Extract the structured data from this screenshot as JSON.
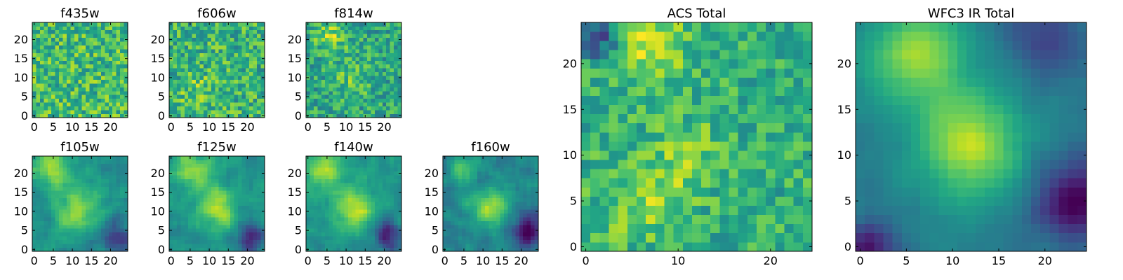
{
  "figure": {
    "type": "heatmap_grid",
    "colormap": "viridis",
    "grid_size": 25
  },
  "chart_data": [
    {
      "id": "f435w",
      "type": "heatmap",
      "title": "f435w",
      "xticks": [
        "0",
        "5",
        "10",
        "15",
        "20"
      ],
      "yticks": [
        "0",
        "5",
        "10",
        "15",
        "20"
      ],
      "xlim": [
        -0.5,
        24.5
      ],
      "ylim": [
        -0.5,
        24.5
      ],
      "texture": "noise",
      "level": 0.68,
      "noise": 0.22,
      "blobs": []
    },
    {
      "id": "f606w",
      "type": "heatmap",
      "title": "f606w",
      "xticks": [
        "0",
        "5",
        "10",
        "15",
        "20"
      ],
      "yticks": [
        "0",
        "5",
        "10",
        "15",
        "20"
      ],
      "xlim": [
        -0.5,
        24.5
      ],
      "ylim": [
        -0.5,
        24.5
      ],
      "texture": "noise",
      "level": 0.64,
      "noise": 0.22,
      "blobs": [
        [
          7,
          6,
          4,
          0.12
        ]
      ]
    },
    {
      "id": "f814w",
      "type": "heatmap",
      "title": "f814w",
      "xticks": [
        "0",
        "5",
        "10",
        "15",
        "20"
      ],
      "yticks": [
        "0",
        "5",
        "10",
        "15",
        "20"
      ],
      "xlim": [
        -0.5,
        24.5
      ],
      "ylim": [
        -0.5,
        24.5
      ],
      "texture": "noise",
      "level": 0.58,
      "noise": 0.2,
      "blobs": [
        [
          6,
          21,
          3,
          0.25
        ],
        [
          12,
          10,
          4,
          0.15
        ]
      ]
    },
    {
      "id": "f105w",
      "type": "heatmap",
      "title": "f105w",
      "xticks": [
        "0",
        "5",
        "10",
        "15",
        "20"
      ],
      "yticks": [
        "0",
        "5",
        "10",
        "15",
        "20"
      ],
      "xlim": [
        -0.5,
        24.5
      ],
      "ylim": [
        -0.5,
        24.5
      ],
      "texture": "smooth",
      "level": 0.5,
      "noise": 0.12,
      "blobs": [
        [
          5,
          21,
          3.5,
          0.35
        ],
        [
          11,
          10,
          4,
          0.35
        ],
        [
          22,
          3,
          3,
          -0.35
        ]
      ]
    },
    {
      "id": "f125w",
      "type": "heatmap",
      "title": "f125w",
      "xticks": [
        "0",
        "5",
        "10",
        "15",
        "20"
      ],
      "yticks": [
        "0",
        "5",
        "10",
        "15",
        "20"
      ],
      "xlim": [
        -0.5,
        24.5
      ],
      "ylim": [
        -0.5,
        24.5
      ],
      "texture": "smooth",
      "level": 0.5,
      "noise": 0.12,
      "blobs": [
        [
          6,
          21,
          3.5,
          0.35
        ],
        [
          12,
          11,
          4,
          0.38
        ],
        [
          21,
          3,
          3,
          -0.35
        ]
      ]
    },
    {
      "id": "f140w",
      "type": "heatmap",
      "title": "f140w",
      "xticks": [
        "0",
        "5",
        "10",
        "15",
        "20"
      ],
      "yticks": [
        "0",
        "5",
        "10",
        "15",
        "20"
      ],
      "xlim": [
        -0.5,
        24.5
      ],
      "ylim": [
        -0.5,
        24.5
      ],
      "texture": "smooth",
      "level": 0.5,
      "noise": 0.12,
      "blobs": [
        [
          4,
          21,
          3.5,
          0.4
        ],
        [
          12,
          11,
          4,
          0.4
        ],
        [
          21,
          4,
          3,
          -0.35
        ]
      ]
    },
    {
      "id": "f160w",
      "type": "heatmap",
      "title": "f160w",
      "xticks": [
        "0",
        "5",
        "10",
        "15",
        "20"
      ],
      "yticks": [
        "0",
        "5",
        "10",
        "15",
        "20"
      ],
      "xlim": [
        -0.5,
        24.5
      ],
      "ylim": [
        -0.5,
        24.5
      ],
      "texture": "smooth",
      "level": 0.45,
      "noise": 0.12,
      "blobs": [
        [
          5,
          21,
          2.5,
          0.35
        ],
        [
          12,
          11,
          3.5,
          0.42
        ],
        [
          22,
          5,
          3,
          -0.45
        ]
      ]
    },
    {
      "id": "acs-total",
      "type": "heatmap",
      "title": "ACS Total",
      "xticks": [
        "0",
        "10",
        "20"
      ],
      "yticks": [
        "0",
        "5",
        "10",
        "15",
        "20"
      ],
      "xlim": [
        -0.5,
        24.5
      ],
      "ylim": [
        -0.5,
        24.5
      ],
      "texture": "noise",
      "level": 0.63,
      "noise": 0.17,
      "blobs": [
        [
          7,
          22,
          2.5,
          0.3
        ],
        [
          11,
          10,
          2.5,
          0.2
        ],
        [
          6,
          5,
          3,
          0.2
        ],
        [
          1,
          23,
          1.5,
          -0.5
        ]
      ]
    },
    {
      "id": "wfc3-ir-total",
      "type": "heatmap",
      "title": "WFC3 IR Total",
      "xticks": [
        "0",
        "5",
        "10",
        "15",
        "20"
      ],
      "yticks": [
        "0",
        "5",
        "10",
        "15",
        "20"
      ],
      "xlim": [
        -0.5,
        24.5
      ],
      "ylim": [
        -0.5,
        24.5
      ],
      "texture": "smooth",
      "level": 0.42,
      "noise": 0.05,
      "blobs": [
        [
          6,
          21,
          4,
          0.42
        ],
        [
          12,
          11,
          4,
          0.48
        ],
        [
          23,
          5,
          3,
          -0.42
        ],
        [
          1,
          0,
          2,
          -0.35
        ],
        [
          20,
          23,
          3,
          -0.2
        ]
      ]
    }
  ]
}
